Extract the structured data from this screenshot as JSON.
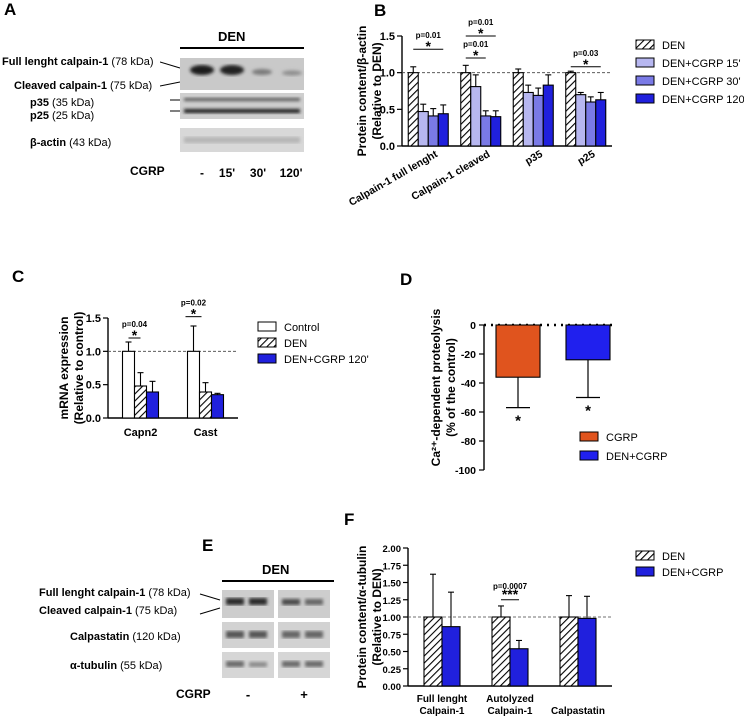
{
  "panels": {
    "A": {
      "letter": "A",
      "treatment_label": "DEN",
      "bands": [
        {
          "name": "Full lenght calpain-1",
          "size": "(78 kDa)"
        },
        {
          "name": "Cleaved calpain-1",
          "size": "(75 kDa)"
        },
        {
          "name": "p35",
          "size": "(35 kDa)"
        },
        {
          "name": "p25",
          "size": "(25 kDa)"
        },
        {
          "name": "β-actin",
          "size": "(43 kDa)"
        }
      ],
      "lane_label": "CGRP",
      "lanes": [
        "-",
        "15'",
        "30'",
        "120'"
      ]
    },
    "C_letter": "C",
    "D_letter": "D",
    "E": {
      "letter": "E",
      "treatment_label": "DEN",
      "bands": [
        {
          "name": "Full lenght calpain-1",
          "size": "(78 kDa)"
        },
        {
          "name": "Cleaved calpain-1",
          "size": "(75 kDa)"
        },
        {
          "name": "Calpastatin",
          "size": "(120 kDa)"
        },
        {
          "name": "α-tubulin",
          "size": "(55 kDa)"
        }
      ],
      "lane_label": "CGRP",
      "lanes": [
        "-",
        "+"
      ]
    }
  },
  "chart_data": [
    {
      "id": "B",
      "letter": "B",
      "type": "bar",
      "ylabel_line1": "Protein content/β-actin",
      "ylabel_line2": "(Relative to DEN)",
      "ylim": [
        0,
        1.5
      ],
      "yticks": [
        "0.0",
        "0.5",
        "1.0",
        "1.5"
      ],
      "categories": [
        "Calpain-1 full lenght",
        "Calpain-1 cleaved",
        "p35",
        "p25"
      ],
      "series": [
        {
          "name": "DEN",
          "pattern": "hatch",
          "values": [
            1.0,
            1.0,
            1.0,
            1.0
          ],
          "errors": [
            0.08,
            0.1,
            0.05,
            0.02
          ]
        },
        {
          "name": "DEN+CGRP 15'",
          "color": "#b7b7f0",
          "values": [
            0.47,
            0.81,
            0.73,
            0.7
          ],
          "errors": [
            0.1,
            0.16,
            0.1,
            0.03
          ]
        },
        {
          "name": "DEN+CGRP 30'",
          "color": "#7a7ae6",
          "values": [
            0.41,
            0.41,
            0.69,
            0.6
          ],
          "errors": [
            0.1,
            0.07,
            0.1,
            0.07
          ]
        },
        {
          "name": "DEN+CGRP 120'",
          "color": "#2020dd",
          "values": [
            0.44,
            0.4,
            0.83,
            0.63
          ],
          "errors": [
            0.12,
            0.08,
            0.14,
            0.1
          ]
        }
      ],
      "reference_line": 1.0,
      "annotations": [
        {
          "text": "p=0.01",
          "star": "*",
          "category": 0,
          "from_series": 0,
          "to_series": 3,
          "level": 1.32
        },
        {
          "text": "p=0.01",
          "star": "*",
          "category": 1,
          "from_series": 0,
          "to_series": 2,
          "level": 1.2
        },
        {
          "text": "p=0.01",
          "star": "*",
          "category": 1,
          "from_series": 0,
          "to_series": 3,
          "level": 1.5
        },
        {
          "text": "p=0.03",
          "star": "*",
          "category": 3,
          "from_series": 0,
          "to_series": 3,
          "level": 1.08
        }
      ]
    },
    {
      "id": "C",
      "type": "bar",
      "ylabel_line1": "mRNA expression",
      "ylabel_line2": "(Relative to control)",
      "ylim": [
        0,
        1.5
      ],
      "yticks": [
        "0.0",
        "0.5",
        "1.0",
        "1.5"
      ],
      "categories": [
        "Capn2",
        "Cast"
      ],
      "series": [
        {
          "name": "Control",
          "color": "#ffffff",
          "values": [
            1.0,
            1.0
          ],
          "errors": [
            0.14,
            0.38
          ]
        },
        {
          "name": "DEN",
          "pattern": "hatch",
          "values": [
            0.48,
            0.39
          ],
          "errors": [
            0.2,
            0.14
          ]
        },
        {
          "name": "DEN+CGRP 120'",
          "color": "#2020dd",
          "values": [
            0.39,
            0.35
          ],
          "errors": [
            0.16,
            0.02
          ]
        }
      ],
      "reference_line": 1.0,
      "annotations": [
        {
          "text": "p=0.04",
          "star": "*",
          "category": 0,
          "from_series": 0,
          "to_series": 1,
          "level": 1.2
        },
        {
          "text": "p=0.02",
          "star": "*",
          "category": 1,
          "from_series": 0,
          "to_series": 0,
          "level": 1.52
        }
      ]
    },
    {
      "id": "D",
      "type": "bar",
      "ylabel_line1": "Ca²⁺-dependent proteolysis",
      "ylabel_line2": "(% of the control)",
      "ylim": [
        -100,
        0
      ],
      "yticks": [
        "0",
        "-20",
        "-40",
        "-60",
        "-80",
        "-100"
      ],
      "categories": [
        "CGRP",
        "DEN+CGRP"
      ],
      "series": [
        {
          "name": "CGRP",
          "color": "#e0541e",
          "value": -36,
          "error": 21,
          "star": "*"
        },
        {
          "name": "DEN+CGRP",
          "color": "#2020ee",
          "value": -24,
          "error": 26,
          "star": "*"
        }
      ],
      "reference_line": 0
    },
    {
      "id": "F",
      "letter": "F",
      "type": "bar",
      "ylabel_line1": "Protein content/α-tubulin",
      "ylabel_line2": "(Relative to DEN)",
      "ylim": [
        0,
        2.0
      ],
      "yticks": [
        "0.00",
        "0.25",
        "0.50",
        "0.75",
        "1.00",
        "1.25",
        "1.50",
        "1.75",
        "2.00"
      ],
      "categories": [
        "Full lenght Calpain-1",
        "Autolyzed Calpain-1",
        "Calpastatin"
      ],
      "series": [
        {
          "name": "DEN",
          "pattern": "hatch",
          "values": [
            1.0,
            1.0,
            1.0
          ],
          "errors": [
            0.62,
            0.16,
            0.31
          ]
        },
        {
          "name": "DEN+CGRP",
          "color": "#2020dd",
          "values": [
            0.86,
            0.54,
            0.98
          ],
          "errors": [
            0.5,
            0.12,
            0.32
          ]
        }
      ],
      "reference_line": 1.0,
      "annotations": [
        {
          "text": "p=0.0007",
          "star": "***",
          "category": 1,
          "from_series": 0,
          "to_series": 1,
          "level": 1.25
        }
      ]
    }
  ]
}
